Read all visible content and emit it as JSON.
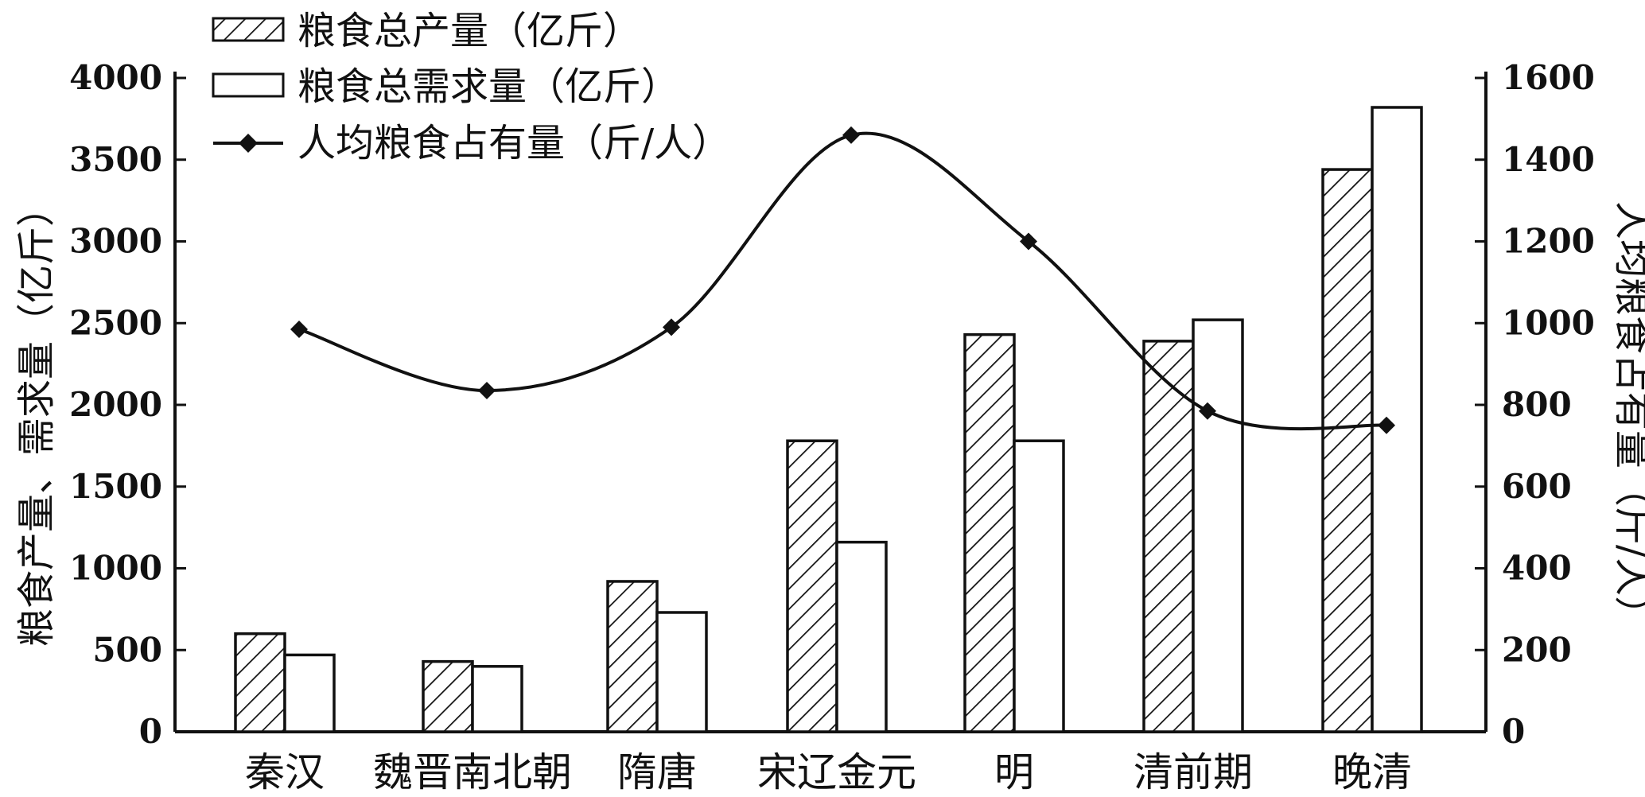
{
  "chart_data": {
    "type": "bar",
    "categories": [
      "秦汉",
      "魏晋南北朝",
      "隋唐",
      "宋辽金元",
      "明",
      "清前期",
      "晚清"
    ],
    "series": [
      {
        "name": "粮食总产量（亿斤）",
        "kind": "bar",
        "pattern": "hatched",
        "axis": "left",
        "values": [
          600,
          430,
          920,
          1780,
          2430,
          2390,
          3440
        ]
      },
      {
        "name": "粮食总需求量（亿斤）",
        "kind": "bar",
        "pattern": "white",
        "axis": "left",
        "values": [
          470,
          400,
          730,
          1160,
          1780,
          2520,
          3820
        ]
      },
      {
        "name": "人均粮食占有量（斤/人）",
        "kind": "line",
        "marker": "diamond",
        "axis": "right",
        "values": [
          985,
          835,
          990,
          1460,
          1200,
          785,
          750
        ]
      }
    ],
    "ylabel_left": "粮食产量、需求量（亿斤）",
    "ylabel_right": "人均粮食占有量（斤/人）",
    "ylim_left": [
      0,
      4000
    ],
    "yticks_left": [
      "0",
      "500",
      "1000",
      "1500",
      "2000",
      "2500",
      "3000",
      "3500",
      "4000"
    ],
    "ylim_right": [
      0,
      1600
    ],
    "yticks_right": [
      "0",
      "200",
      "400",
      "600",
      "800",
      "1000",
      "1200",
      "1400",
      "1600"
    ],
    "legend_position": "top-left",
    "grid": false
  }
}
